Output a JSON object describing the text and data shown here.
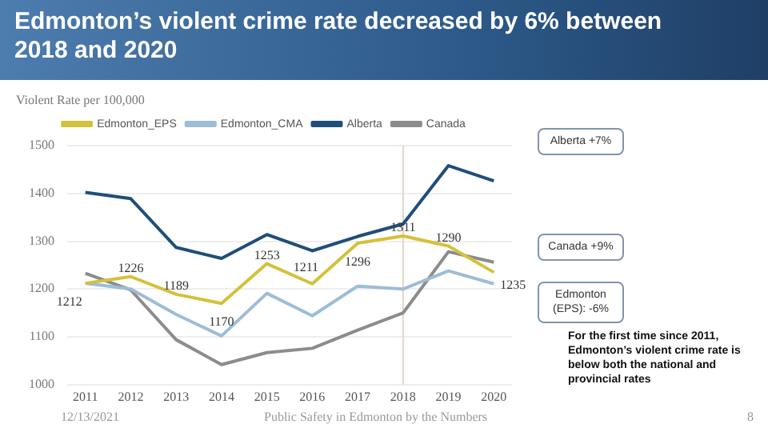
{
  "chart_data": {
    "type": "line",
    "title": "Edmonton’s violent crime rate decreased by 6% between 2018 and 2020",
    "ylabel": "Violent Rate per 100,000",
    "x": [
      2011,
      2012,
      2013,
      2014,
      2015,
      2016,
      2017,
      2018,
      2019,
      2020
    ],
    "xlim": [
      2010.6,
      2020.4
    ],
    "xticks": [
      2011,
      2012,
      2013,
      2014,
      2015,
      2016,
      2017,
      2018,
      2019,
      2020
    ],
    "ylim": [
      1000,
      1500
    ],
    "yticks": [
      1000,
      1100,
      1200,
      1300,
      1400,
      1500
    ],
    "series": [
      {
        "name": "Edmonton_EPS",
        "color": "#d4c13a",
        "values": [
          1212,
          1226,
          1189,
          1170,
          1253,
          1211,
          1296,
          1311,
          1290,
          1235
        ],
        "value_labels": [
          "1212",
          "1226",
          "1189",
          "1170",
          "1253",
          "1211",
          "1296",
          "1311",
          "1290",
          "1235"
        ]
      },
      {
        "name": "Edmonton_CMA",
        "color": "#9dbdd6",
        "values": [
          1212,
          1200,
          1147,
          1102,
          1191,
          1144,
          1206,
          1200,
          1238,
          1211
        ]
      },
      {
        "name": "Alberta",
        "color": "#1f4e79",
        "values": [
          1402,
          1389,
          1287,
          1264,
          1314,
          1280,
          1310,
          1336,
          1458,
          1426
        ]
      },
      {
        "name": "Canada",
        "color": "#8c8c8c",
        "values": [
          1233,
          1198,
          1094,
          1042,
          1067,
          1076,
          1114,
          1150,
          1278,
          1256
        ]
      }
    ],
    "ref_lines": [
      {
        "axis": "x",
        "value": 2018,
        "color": "#e2d6c6"
      }
    ],
    "annotations": [
      "Alberta +7%",
      "Canada +9%",
      "Edmonton (EPS): -6%",
      "For the first time since 2011, Edmonton’s violent crime rate is below both the national and provincial rates",
      "12/13/2021",
      "Public Safety in Edmonton by the Numbers",
      "8"
    ],
    "grid": "y",
    "legend": "top",
    "marker": "none",
    "line_style": "solid"
  }
}
